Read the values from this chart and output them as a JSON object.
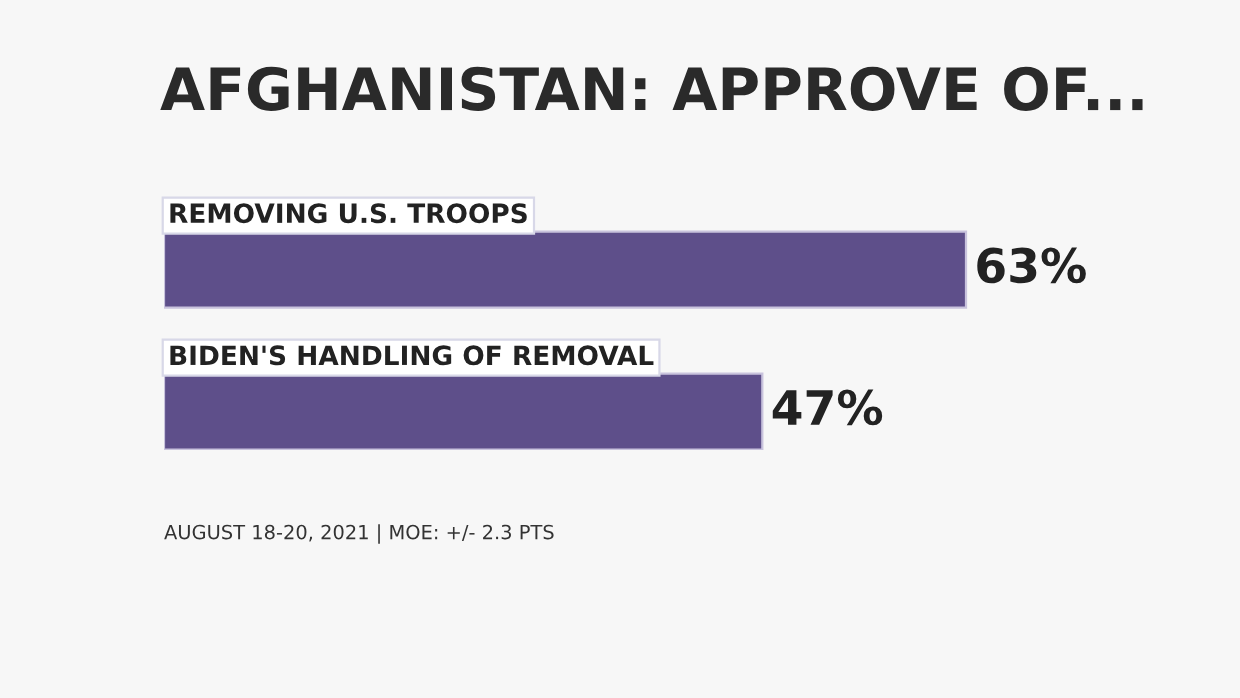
{
  "chart_data": {
    "type": "bar",
    "orientation": "horizontal",
    "title": "AFGHANISTAN: APPROVE OF...",
    "categories": [
      "REMOVING U.S. TROOPS",
      "BIDEN'S HANDLING OF REMOVAL"
    ],
    "values": [
      63,
      47
    ],
    "value_labels": [
      "63%",
      "47%"
    ],
    "color": "#5e4f8a",
    "annotations": [
      "AUGUST 18-20, 2021 | MOE: +/- 2.3 PTS"
    ]
  }
}
